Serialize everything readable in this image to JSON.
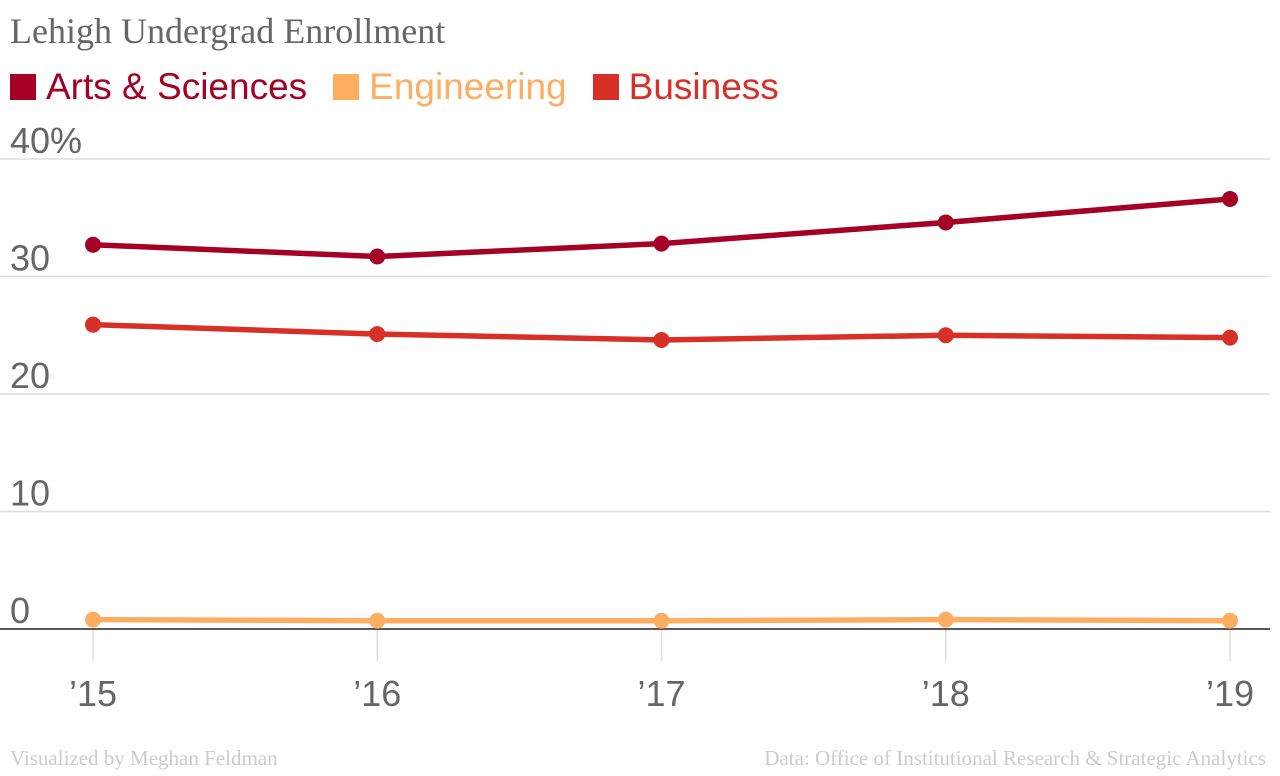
{
  "chart_data": {
    "type": "line",
    "title": "Lehigh Undergrad Enrollment",
    "categories": [
      "’15",
      "’16",
      "’17",
      "’18",
      "’19"
    ],
    "y_ticks": [
      "0",
      "10",
      "20",
      "30",
      "40%"
    ],
    "ylim": [
      0,
      40
    ],
    "grid": true,
    "legend_position": "top-left",
    "series": [
      {
        "name": "Arts & Sciences",
        "color": "#a50026",
        "values": [
          32.7,
          31.7,
          32.8,
          34.6,
          36.6
        ]
      },
      {
        "name": "Engineering",
        "color": "#fdae61",
        "values": [
          0.8,
          0.7,
          0.7,
          0.8,
          0.7
        ]
      },
      {
        "name": "Business",
        "color": "#d73027",
        "values": [
          25.9,
          25.1,
          24.6,
          25.0,
          24.8
        ]
      }
    ]
  },
  "footer": {
    "credit": "Visualized by Meghan Feldman",
    "source": "Data: Office of Institutional Research & Strategic Analytics"
  }
}
